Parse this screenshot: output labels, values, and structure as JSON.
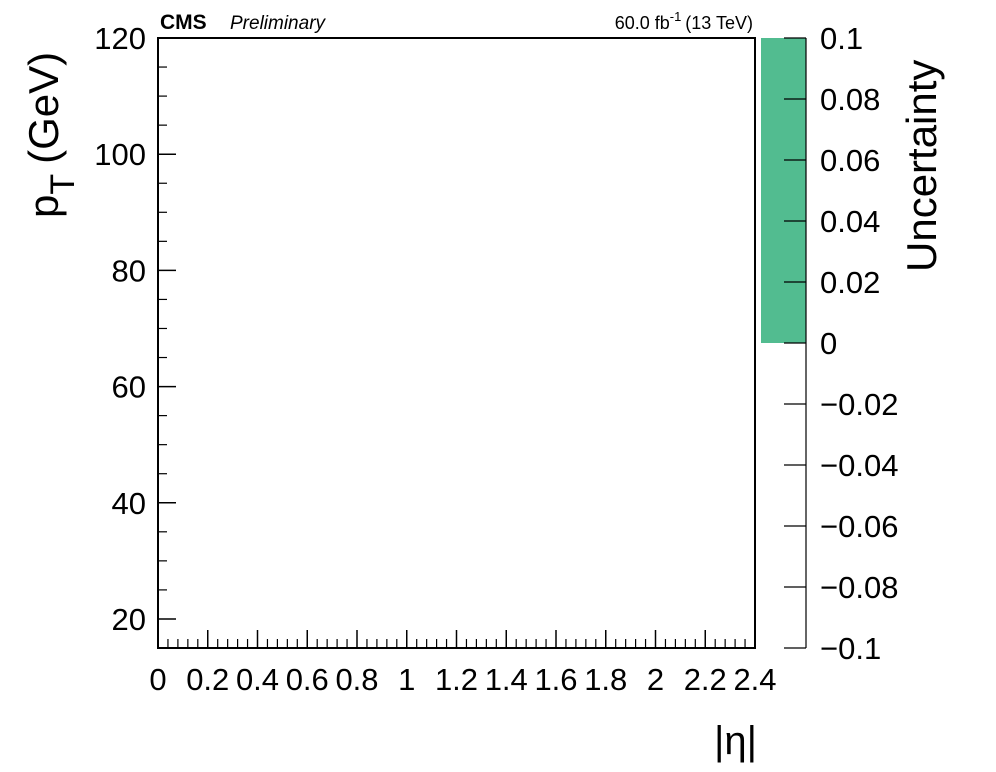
{
  "header": {
    "experiment": "CMS",
    "status": "Preliminary",
    "luminosity_value": "60.0 fb",
    "luminosity_exp": "-1",
    "energy": "(13 TeV)"
  },
  "chart_data": {
    "type": "heatmap",
    "title": "",
    "xlabel": "|η|",
    "ylabel_main": "p",
    "ylabel_sub": "T",
    "ylabel_unit": "(GeV)",
    "xlim": [
      0,
      2.4
    ],
    "ylim": [
      15,
      120
    ],
    "x_tick_labels": [
      "0",
      "0.2",
      "0.4",
      "0.6",
      "0.8",
      "1",
      "1.2",
      "1.4",
      "1.6",
      "1.8",
      "2",
      "2.2",
      "2.4"
    ],
    "y_tick_labels": [
      "20",
      "40",
      "60",
      "80",
      "100",
      "120"
    ],
    "colorbar": {
      "label": "Uncertainty",
      "range": [
        -0.1,
        0.1
      ],
      "tick_labels": [
        "0.1",
        "0.08",
        "0.06",
        "0.04",
        "0.02",
        "0",
        "−0.02",
        "−0.04",
        "−0.06",
        "−0.08",
        "−0.1"
      ],
      "filled_range": [
        0,
        0.1
      ],
      "fill_color": "#52bc90"
    },
    "cells": []
  }
}
